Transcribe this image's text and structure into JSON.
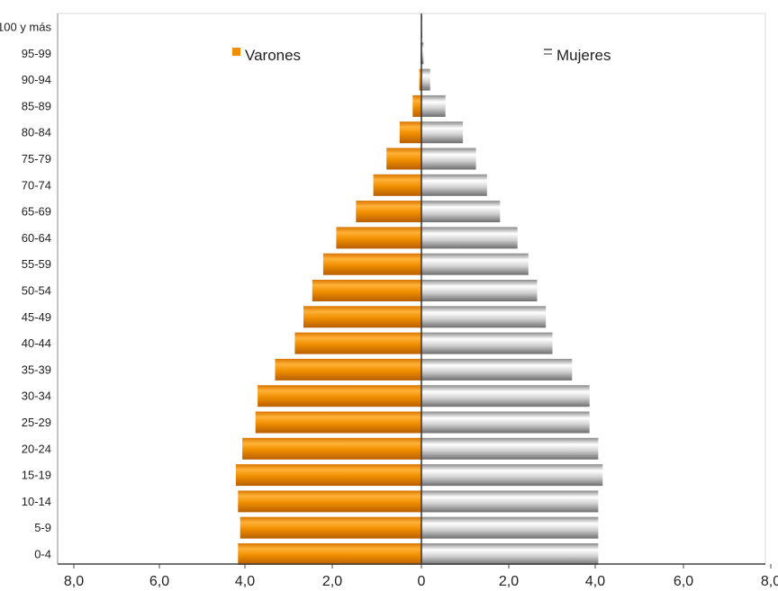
{
  "chart_data": {
    "type": "bar",
    "orientation": "horizontal",
    "subtype": "population-pyramid",
    "categories": [
      "0-4",
      "5-9",
      "10-14",
      "15-19",
      "20-24",
      "25-29",
      "30-34",
      "35-39",
      "40-44",
      "45-49",
      "50-54",
      "55-59",
      "60-64",
      "65-69",
      "70-74",
      "75-79",
      "80-84",
      "85-89",
      "90-94",
      "95-99",
      "100 y más"
    ],
    "series": [
      {
        "name": "Varones",
        "side": "left",
        "color": "#ef8f04",
        "values": [
          4.2,
          4.15,
          4.2,
          4.25,
          4.1,
          3.8,
          3.75,
          3.35,
          2.9,
          2.7,
          2.5,
          2.25,
          1.95,
          1.5,
          1.1,
          0.8,
          0.5,
          0.2,
          0.05,
          0.02,
          0.01
        ]
      },
      {
        "name": "Mujeres",
        "side": "right",
        "color": "#b4b4b4",
        "values": [
          4.05,
          4.05,
          4.05,
          4.15,
          4.05,
          3.85,
          3.85,
          3.45,
          3.0,
          2.85,
          2.65,
          2.45,
          2.2,
          1.8,
          1.5,
          1.25,
          0.95,
          0.55,
          0.2,
          0.05,
          0.02
        ]
      }
    ],
    "x_ticks": [
      "8,0",
      "6,0",
      "4,0",
      "2,0",
      "0",
      "2,0",
      "4,0",
      "6,0",
      "8,0"
    ],
    "xlim": [
      -8,
      8
    ],
    "grid": false,
    "legend_placement": "top"
  }
}
